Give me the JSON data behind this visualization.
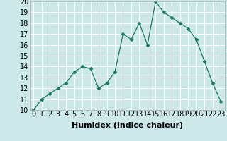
{
  "x": [
    0,
    1,
    2,
    3,
    4,
    5,
    6,
    7,
    8,
    9,
    10,
    11,
    12,
    13,
    14,
    15,
    16,
    17,
    18,
    19,
    20,
    21,
    22,
    23
  ],
  "y": [
    10.0,
    11.0,
    11.5,
    12.0,
    12.5,
    13.5,
    14.0,
    13.8,
    12.0,
    12.5,
    13.5,
    17.0,
    16.5,
    18.0,
    16.0,
    20.0,
    19.0,
    18.5,
    18.0,
    17.5,
    16.5,
    14.5,
    12.5,
    10.8
  ],
  "line_color": "#1a7a5e",
  "marker": "D",
  "marker_size": 2.5,
  "background_color": "#cce8e8",
  "grid_color": "#ffffff",
  "xlabel": "Humidex (Indice chaleur)",
  "xlim": [
    -0.5,
    23.5
  ],
  "ylim": [
    10,
    20
  ],
  "xticks": [
    0,
    1,
    2,
    3,
    4,
    5,
    6,
    7,
    8,
    9,
    10,
    11,
    12,
    13,
    14,
    15,
    16,
    17,
    18,
    19,
    20,
    21,
    22,
    23
  ],
  "yticks": [
    10,
    11,
    12,
    13,
    14,
    15,
    16,
    17,
    18,
    19,
    20
  ],
  "xlabel_fontsize": 8,
  "tick_fontsize": 7
}
